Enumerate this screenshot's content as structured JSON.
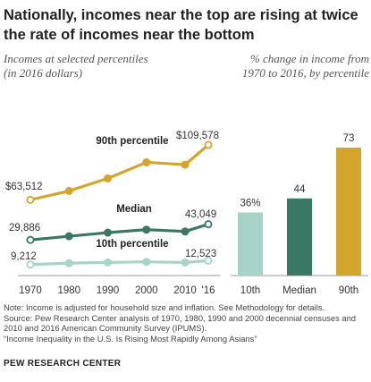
{
  "title": "Nationally, incomes near the top are rising at twice the rate of incomes near the bottom",
  "left_subtitle_line1": "Incomes at selected percentiles",
  "left_subtitle_line2": "(in 2016 dollars)",
  "right_subtitle_line1": "% change in income from",
  "right_subtitle_line2": "1970 to 2016, by percentile",
  "colors": {
    "p90": "#d4a52c",
    "median": "#3b7765",
    "p10": "#a7d4c9"
  },
  "chart_data": [
    {
      "type": "line",
      "x": [
        "1970",
        "1980",
        "1990",
        "2000",
        "2010",
        "'16"
      ],
      "x_numeric": [
        1970,
        1980,
        1990,
        2000,
        2010,
        2016
      ],
      "series": [
        {
          "name": "90th percentile",
          "values": [
            63512,
            71000,
            81500,
            95000,
            93000,
            109578
          ]
        },
        {
          "name": "Median",
          "values": [
            29886,
            33000,
            36000,
            38500,
            37000,
            43049
          ]
        },
        {
          "name": "10th percentile",
          "values": [
            9212,
            10400,
            11000,
            11500,
            11000,
            12523
          ]
        }
      ],
      "endpoint_labels": {
        "p90_start": "$63,512",
        "p90_end": "$109,578",
        "median_start": "29,886",
        "median_end": "43,049",
        "p10_start": "9,212",
        "p10_end": "12,523"
      }
    },
    {
      "type": "bar",
      "categories": [
        "10th",
        "Median",
        "90th"
      ],
      "values": [
        36,
        44,
        73
      ],
      "data_labels": [
        "36%",
        "44",
        "73"
      ]
    }
  ],
  "notes": {
    "note": "Note: Income is adjusted for household size and inflation. See Methodology for details.",
    "source": "Source: Pew Research Center analysis of 1970, 1980, 1990 and 2000 decennial censuses and 2010 and 2016 American Community Survey (IPUMS).",
    "report": "“Income Inequality in the U.S. Is Rising Most Rapidly Among Asians”"
  },
  "footer": "PEW RESEARCH CENTER"
}
